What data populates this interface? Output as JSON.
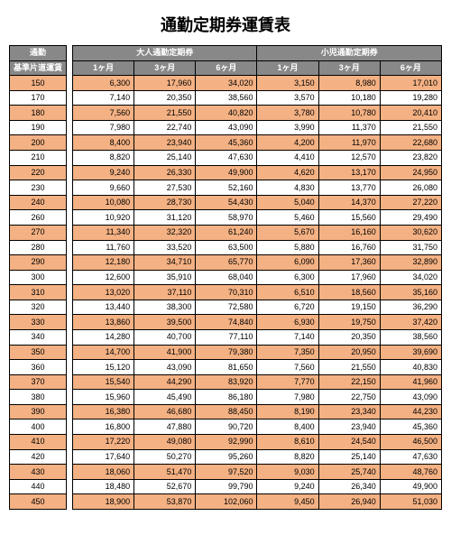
{
  "title": "通勤定期券運賃表",
  "colors": {
    "header_bg": "#888888",
    "header_fg": "#ffffff",
    "row_even_bg": "#f4b183",
    "row_odd_bg": "#ffffff",
    "border": "#000000"
  },
  "left": {
    "header_top": "通勤",
    "header_sub": "基準片道運賃",
    "fares": [
      150,
      170,
      180,
      190,
      200,
      210,
      220,
      230,
      240,
      260,
      270,
      280,
      290,
      300,
      310,
      320,
      330,
      340,
      350,
      360,
      370,
      380,
      390,
      400,
      410,
      420,
      430,
      440,
      450
    ]
  },
  "main": {
    "group_headers": [
      "大人通勤定期券",
      "小児通勤定期券"
    ],
    "sub_headers": [
      "1ヶ月",
      "3ヶ月",
      "6ヶ月",
      "1ヶ月",
      "3ヶ月",
      "6ヶ月"
    ],
    "rows": [
      [
        6300,
        17960,
        34020,
        3150,
        8980,
        17010
      ],
      [
        7140,
        20350,
        38560,
        3570,
        10180,
        19280
      ],
      [
        7560,
        21550,
        40820,
        3780,
        10780,
        20410
      ],
      [
        7980,
        22740,
        43090,
        3990,
        11370,
        21550
      ],
      [
        8400,
        23940,
        45360,
        4200,
        11970,
        22680
      ],
      [
        8820,
        25140,
        47630,
        4410,
        12570,
        23820
      ],
      [
        9240,
        26330,
        49900,
        4620,
        13170,
        24950
      ],
      [
        9660,
        27530,
        52160,
        4830,
        13770,
        26080
      ],
      [
        10080,
        28730,
        54430,
        5040,
        14370,
        27220
      ],
      [
        10920,
        31120,
        58970,
        5460,
        15560,
        29490
      ],
      [
        11340,
        32320,
        61240,
        5670,
        16160,
        30620
      ],
      [
        11760,
        33520,
        63500,
        5880,
        16760,
        31750
      ],
      [
        12180,
        34710,
        65770,
        6090,
        17360,
        32890
      ],
      [
        12600,
        35910,
        68040,
        6300,
        17960,
        34020
      ],
      [
        13020,
        37110,
        70310,
        6510,
        18560,
        35160
      ],
      [
        13440,
        38300,
        72580,
        6720,
        19150,
        36290
      ],
      [
        13860,
        39500,
        74840,
        6930,
        19750,
        37420
      ],
      [
        14280,
        40700,
        77110,
        7140,
        20350,
        38560
      ],
      [
        14700,
        41900,
        79380,
        7350,
        20950,
        39690
      ],
      [
        15120,
        43090,
        81650,
        7560,
        21550,
        40830
      ],
      [
        15540,
        44290,
        83920,
        7770,
        22150,
        41960
      ],
      [
        15960,
        45490,
        86180,
        7980,
        22750,
        43090
      ],
      [
        16380,
        46680,
        88450,
        8190,
        23340,
        44230
      ],
      [
        16800,
        47880,
        90720,
        8400,
        23940,
        45360
      ],
      [
        17220,
        49080,
        92990,
        8610,
        24540,
        46500
      ],
      [
        17640,
        50270,
        95260,
        8820,
        25140,
        47630
      ],
      [
        18060,
        51470,
        97520,
        9030,
        25740,
        48760
      ],
      [
        18480,
        52670,
        99790,
        9240,
        26340,
        49900
      ],
      [
        18900,
        53870,
        102060,
        9450,
        26940,
        51030
      ]
    ]
  }
}
